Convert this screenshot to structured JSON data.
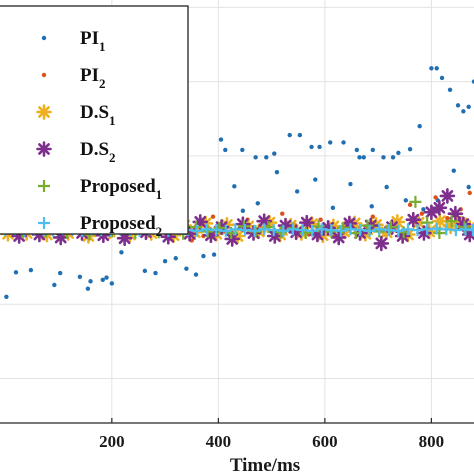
{
  "chart_data": {
    "type": "scatter",
    "xlabel": "Time/ms",
    "ylabel": "",
    "xlim": [
      -10,
      880
    ],
    "xticks": [
      200,
      400,
      600,
      800
    ],
    "grid": true,
    "legend_position": "top-left",
    "series": [
      {
        "name": "PI",
        "sub": "1",
        "marker": "dot",
        "color": "#1f6fb2",
        "points": [
          [
            2,
            -90
          ],
          [
            20,
            -57
          ],
          [
            48,
            -54
          ],
          [
            92,
            -74
          ],
          [
            103,
            -58
          ],
          [
            140,
            -63
          ],
          [
            160,
            -69
          ],
          [
            155,
            -79
          ],
          [
            183,
            -67
          ],
          [
            190,
            -64
          ],
          [
            200,
            -72
          ],
          [
            218,
            -30
          ],
          [
            262,
            -55
          ],
          [
            282,
            -58
          ],
          [
            300,
            -42
          ],
          [
            320,
            -38
          ],
          [
            340,
            -52
          ],
          [
            358,
            -60
          ],
          [
            372,
            -35
          ],
          [
            392,
            -33
          ],
          [
            405,
            122
          ],
          [
            413,
            108
          ],
          [
            445,
            108
          ],
          [
            470,
            98
          ],
          [
            490,
            98
          ],
          [
            505,
            103
          ],
          [
            534,
            128
          ],
          [
            553,
            128
          ],
          [
            575,
            112
          ],
          [
            590,
            112
          ],
          [
            610,
            118
          ],
          [
            635,
            118
          ],
          [
            660,
            108
          ],
          [
            665,
            98
          ],
          [
            673,
            98
          ],
          [
            690,
            108
          ],
          [
            710,
            98
          ],
          [
            728,
            98
          ],
          [
            738,
            104
          ],
          [
            760,
            109
          ],
          [
            778,
            140
          ],
          [
            800,
            218
          ],
          [
            810,
            218
          ],
          [
            820,
            205
          ],
          [
            835,
            189
          ],
          [
            850,
            168
          ],
          [
            860,
            160
          ],
          [
            870,
            166
          ],
          [
            880,
            200
          ],
          [
            430,
            59
          ],
          [
            446,
            26
          ],
          [
            474,
            36
          ],
          [
            510,
            78
          ],
          [
            548,
            52
          ],
          [
            582,
            68
          ],
          [
            615,
            30
          ],
          [
            648,
            62
          ],
          [
            688,
            32
          ],
          [
            716,
            58
          ],
          [
            752,
            40
          ],
          [
            785,
            28
          ],
          [
            812,
            40
          ],
          [
            842,
            80
          ],
          [
            870,
            58
          ]
        ]
      },
      {
        "name": "PI",
        "sub": "2",
        "marker": "dot",
        "color": "#d95319",
        "points": [
          [
            10,
            18
          ],
          [
            30,
            28
          ],
          [
            50,
            30
          ],
          [
            65,
            18
          ],
          [
            82,
            22
          ],
          [
            110,
            16
          ],
          [
            130,
            10
          ],
          [
            148,
            28
          ],
          [
            170,
            20
          ],
          [
            192,
            14
          ],
          [
            210,
            8
          ],
          [
            236,
            16
          ],
          [
            258,
            24
          ],
          [
            280,
            12
          ],
          [
            305,
            22
          ],
          [
            330,
            10
          ],
          [
            350,
            -14
          ],
          [
            372,
            -8
          ],
          [
            390,
            18
          ],
          [
            410,
            -2
          ],
          [
            432,
            -10
          ],
          [
            455,
            14
          ],
          [
            478,
            6
          ],
          [
            500,
            -2
          ],
          [
            520,
            22
          ],
          [
            545,
            6
          ],
          [
            570,
            -6
          ],
          [
            592,
            14
          ],
          [
            618,
            -8
          ],
          [
            640,
            10
          ],
          [
            665,
            -2
          ],
          [
            690,
            18
          ],
          [
            712,
            -6
          ],
          [
            735,
            10
          ],
          [
            760,
            34
          ],
          [
            782,
            22
          ],
          [
            808,
            44
          ],
          [
            830,
            16
          ],
          [
            855,
            28
          ],
          [
            872,
            50
          ]
        ]
      },
      {
        "name": "D.S",
        "sub": "1",
        "marker": "asterisk",
        "color": "#edb120",
        "points": [
          [
            5,
            -5
          ],
          [
            22,
            6
          ],
          [
            40,
            -4
          ],
          [
            60,
            9
          ],
          [
            78,
            -6
          ],
          [
            98,
            12
          ],
          [
            118,
            -4
          ],
          [
            136,
            10
          ],
          [
            156,
            -8
          ],
          [
            176,
            7
          ],
          [
            196,
            -2
          ],
          [
            214,
            11
          ],
          [
            234,
            -6
          ],
          [
            254,
            8
          ],
          [
            274,
            -4
          ],
          [
            296,
            10
          ],
          [
            316,
            -7
          ],
          [
            336,
            6
          ],
          [
            356,
            -3
          ],
          [
            376,
            9
          ],
          [
            396,
            -5
          ],
          [
            416,
            7
          ],
          [
            436,
            -8
          ],
          [
            456,
            5
          ],
          [
            476,
            -2
          ],
          [
            496,
            10
          ],
          [
            516,
            -6
          ],
          [
            536,
            6
          ],
          [
            556,
            -4
          ],
          [
            576,
            8
          ],
          [
            596,
            -7
          ],
          [
            616,
            5
          ],
          [
            636,
            -2
          ],
          [
            656,
            9
          ],
          [
            676,
            -5
          ],
          [
            696,
            7
          ],
          [
            716,
            -3
          ],
          [
            736,
            11
          ],
          [
            756,
            -6
          ],
          [
            776,
            10
          ],
          [
            796,
            -2
          ],
          [
            816,
            12
          ],
          [
            836,
            5
          ],
          [
            856,
            9
          ],
          [
            872,
            3
          ]
        ]
      },
      {
        "name": "D.S",
        "sub": "2",
        "marker": "asterisk",
        "color": "#7e2f8e",
        "points": [
          [
            8,
            4
          ],
          [
            26,
            -8
          ],
          [
            44,
            10
          ],
          [
            64,
            -6
          ],
          [
            84,
            13
          ],
          [
            104,
            -10
          ],
          [
            124,
            8
          ],
          [
            144,
            -4
          ],
          [
            164,
            12
          ],
          [
            184,
            -7
          ],
          [
            204,
            5
          ],
          [
            224,
            -11
          ],
          [
            244,
            9
          ],
          [
            264,
            -3
          ],
          [
            286,
            24
          ],
          [
            306,
            -9
          ],
          [
            326,
            7
          ],
          [
            346,
            -5
          ],
          [
            366,
            11
          ],
          [
            386,
            -7
          ],
          [
            406,
            4
          ],
          [
            426,
            -12
          ],
          [
            446,
            8
          ],
          [
            466,
            -4
          ],
          [
            486,
            12
          ],
          [
            506,
            -8
          ],
          [
            526,
            6
          ],
          [
            546,
            -3
          ],
          [
            566,
            10
          ],
          [
            586,
            -6
          ],
          [
            606,
            3
          ],
          [
            626,
            -10
          ],
          [
            646,
            9
          ],
          [
            666,
            -4
          ],
          [
            686,
            6
          ],
          [
            706,
            -18
          ],
          [
            726,
            4
          ],
          [
            746,
            -8
          ],
          [
            766,
            14
          ],
          [
            786,
            -4
          ],
          [
            800,
            24
          ],
          [
            815,
            30
          ],
          [
            830,
            46
          ],
          [
            845,
            22
          ],
          [
            860,
            8
          ],
          [
            872,
            -6
          ]
        ]
      },
      {
        "name": "Proposed",
        "sub": "1",
        "marker": "plus",
        "color": "#77ac30",
        "points": [
          [
            12,
            6
          ],
          [
            32,
            -3
          ],
          [
            56,
            4
          ],
          [
            76,
            -2
          ],
          [
            96,
            8
          ],
          [
            116,
            -4
          ],
          [
            138,
            2
          ],
          [
            158,
            -6
          ],
          [
            180,
            4
          ],
          [
            200,
            -2
          ],
          [
            222,
            3
          ],
          [
            244,
            -4
          ],
          [
            266,
            6
          ],
          [
            288,
            -3
          ],
          [
            312,
            2
          ],
          [
            334,
            -5
          ],
          [
            358,
            4
          ],
          [
            380,
            -2
          ],
          [
            402,
            3
          ],
          [
            424,
            -4
          ],
          [
            448,
            5
          ],
          [
            470,
            -2
          ],
          [
            494,
            4
          ],
          [
            518,
            -3
          ],
          [
            540,
            2
          ],
          [
            564,
            -4
          ],
          [
            588,
            5
          ],
          [
            612,
            -2
          ],
          [
            634,
            3
          ],
          [
            658,
            -4
          ],
          [
            680,
            6
          ],
          [
            702,
            -2
          ],
          [
            724,
            4
          ],
          [
            748,
            -3
          ],
          [
            770,
            38
          ],
          [
            792,
            10
          ],
          [
            815,
            -4
          ],
          [
            838,
            12
          ],
          [
            862,
            4
          ]
        ]
      },
      {
        "name": "Proposed",
        "sub": "2",
        "marker": "plus",
        "color": "#4dbeee",
        "points": [
          [
            0,
            0
          ],
          [
            18,
            1
          ],
          [
            36,
            -1
          ],
          [
            54,
            1
          ],
          [
            72,
            0
          ],
          [
            90,
            -1
          ],
          [
            108,
            1
          ],
          [
            126,
            0
          ],
          [
            144,
            -1
          ],
          [
            162,
            1
          ],
          [
            180,
            0
          ],
          [
            198,
            -1
          ],
          [
            216,
            1
          ],
          [
            234,
            0
          ],
          [
            252,
            -1
          ],
          [
            270,
            1
          ],
          [
            288,
            0
          ],
          [
            306,
            -1
          ],
          [
            324,
            1
          ],
          [
            342,
            0
          ],
          [
            360,
            -1
          ],
          [
            378,
            1
          ],
          [
            396,
            0
          ],
          [
            414,
            -1
          ],
          [
            432,
            1
          ],
          [
            450,
            0
          ],
          [
            468,
            -1
          ],
          [
            486,
            1
          ],
          [
            504,
            0
          ],
          [
            522,
            -1
          ],
          [
            540,
            1
          ],
          [
            558,
            0
          ],
          [
            576,
            -1
          ],
          [
            594,
            1
          ],
          [
            612,
            0
          ],
          [
            630,
            -1
          ],
          [
            648,
            1
          ],
          [
            666,
            0
          ],
          [
            684,
            -1
          ],
          [
            702,
            1
          ],
          [
            720,
            0
          ],
          [
            738,
            -1
          ],
          [
            756,
            1
          ],
          [
            774,
            0
          ],
          [
            792,
            1
          ],
          [
            810,
            2
          ],
          [
            828,
            1
          ],
          [
            846,
            0
          ],
          [
            864,
            1
          ],
          [
            878,
            0
          ]
        ]
      }
    ]
  }
}
